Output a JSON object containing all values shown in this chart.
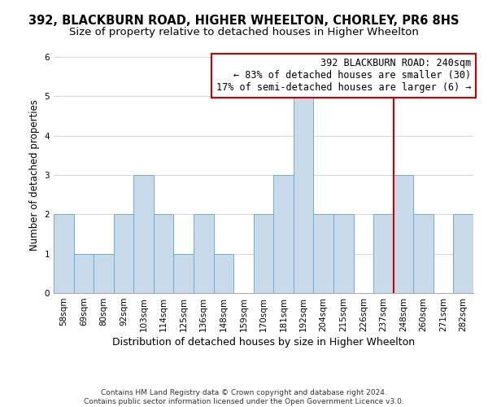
{
  "title1": "392, BLACKBURN ROAD, HIGHER WHEELTON, CHORLEY, PR6 8HS",
  "title2": "Size of property relative to detached houses in Higher Wheelton",
  "xlabel": "Distribution of detached houses by size in Higher Wheelton",
  "ylabel": "Number of detached properties",
  "categories": [
    "58sqm",
    "69sqm",
    "80sqm",
    "92sqm",
    "103sqm",
    "114sqm",
    "125sqm",
    "136sqm",
    "148sqm",
    "159sqm",
    "170sqm",
    "181sqm",
    "192sqm",
    "204sqm",
    "215sqm",
    "226sqm",
    "237sqm",
    "248sqm",
    "260sqm",
    "271sqm",
    "282sqm"
  ],
  "values": [
    2,
    1,
    1,
    2,
    3,
    2,
    1,
    2,
    1,
    0,
    2,
    3,
    5,
    2,
    2,
    0,
    2,
    3,
    2,
    0,
    2
  ],
  "bar_color": "#c9daea",
  "bar_edge_color": "#6aaed6",
  "vline_color": "#cc0000",
  "vline_index": 16.5,
  "annotation_text": "392 BLACKBURN ROAD: 240sqm\n← 83% of detached houses are smaller (30)\n17% of semi-detached houses are larger (6) →",
  "annotation_box_facecolor": "#ffffff",
  "annotation_box_edgecolor": "#cc0000",
  "ylim": [
    0,
    6
  ],
  "yticks": [
    0,
    1,
    2,
    3,
    4,
    5,
    6
  ],
  "footnote": "Contains HM Land Registry data © Crown copyright and database right 2024.\nContains public sector information licensed under the Open Government Licence v3.0.",
  "bg_color": "#ffffff",
  "grid_color": "#d0d0d0",
  "title1_fontsize": 10.5,
  "title2_fontsize": 9.5,
  "xlabel_fontsize": 9,
  "ylabel_fontsize": 8.5,
  "tick_fontsize": 7.5,
  "annot_fontsize": 8.5,
  "footnote_fontsize": 6.5
}
